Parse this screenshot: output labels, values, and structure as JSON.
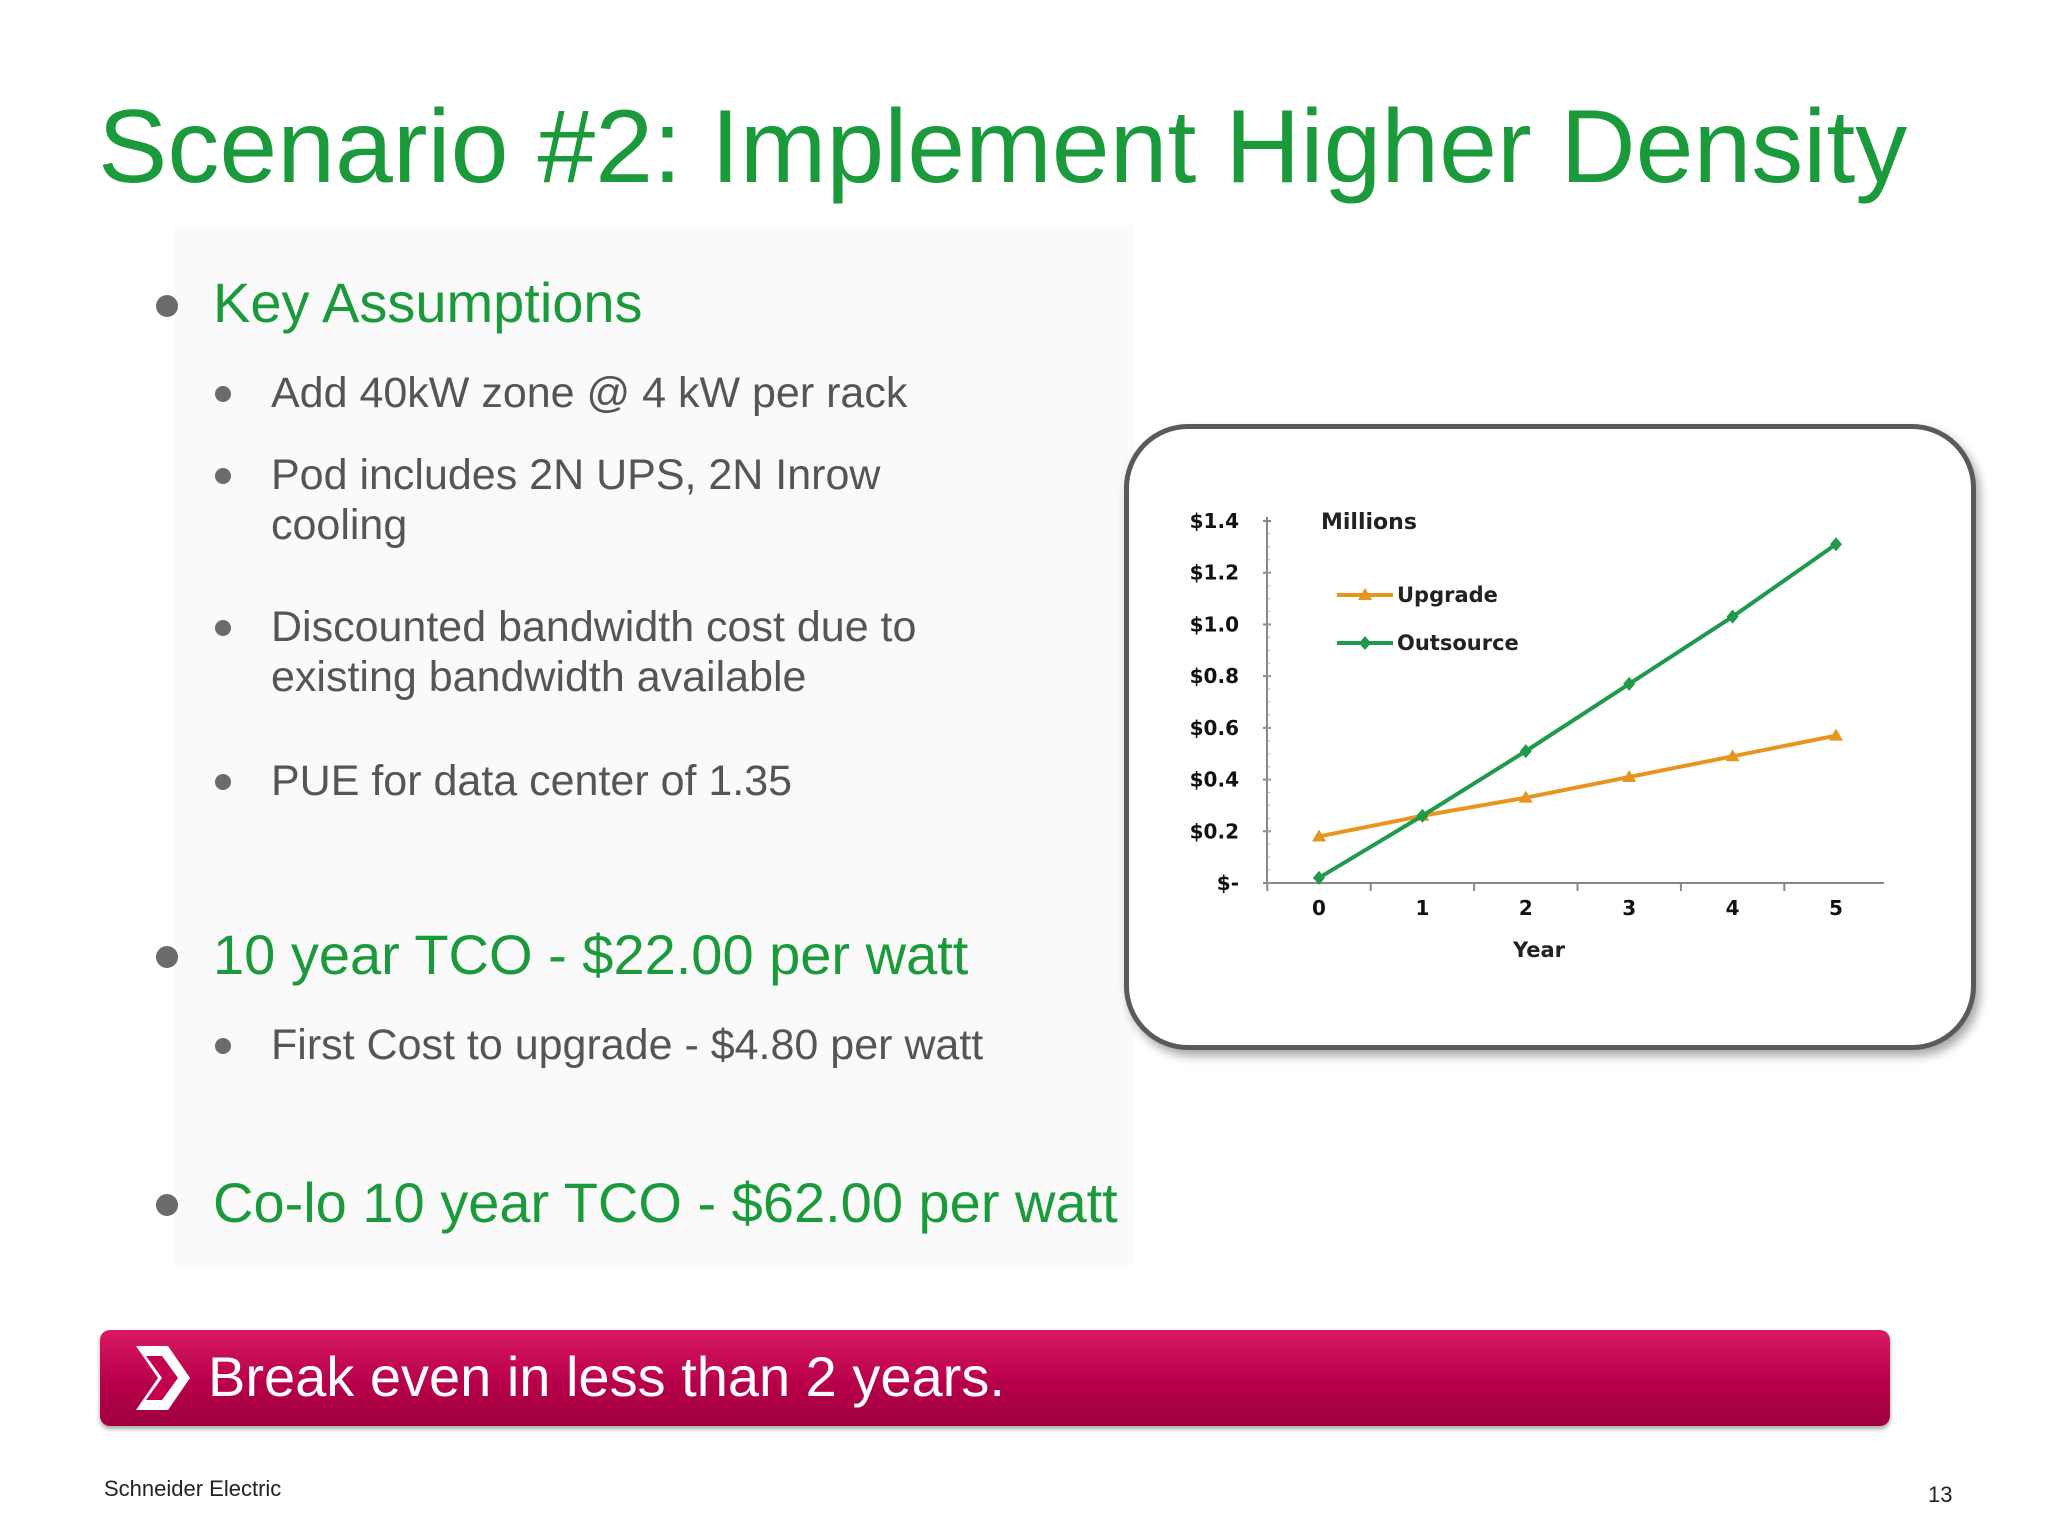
{
  "slide": {
    "title": "Scenario #2:  Implement Higher Density",
    "sections": [
      {
        "heading": "Key Assumptions",
        "items": [
          "Add 40kW zone @ 4 kW per rack",
          "Pod includes 2N UPS, 2N Inrow cooling",
          "Discounted bandwidth cost due to existing bandwidth available",
          "PUE for data center of 1.35"
        ]
      },
      {
        "heading": "10 year TCO - $22.00 per watt",
        "items": [
          "First Cost to upgrade - $4.80 per watt"
        ]
      },
      {
        "heading": "Co-lo 10 year TCO - $62.00 per watt",
        "items": []
      }
    ],
    "banner_text": "Break even in less than 2 years.",
    "footer_company": "Schneider Electric",
    "page_number": "13"
  },
  "chart_data": {
    "type": "line",
    "annotation": "Millions",
    "xlabel": "Year",
    "ylabel": "",
    "x": [
      0,
      1,
      2,
      3,
      4,
      5
    ],
    "x_tick_labels": [
      "0",
      "1",
      "2",
      "3",
      "4",
      "5"
    ],
    "y_tick_labels": [
      "$-",
      "$0.2",
      "$0.4",
      "$0.6",
      "$0.8",
      "$1.0",
      "$1.2",
      "$1.4"
    ],
    "ylim": [
      0,
      1.4
    ],
    "grid": false,
    "legend_placement": "top-left",
    "series": [
      {
        "name": "Upgrade",
        "color": "#e8951f",
        "marker": "triangle",
        "values": [
          0.18,
          0.26,
          0.33,
          0.41,
          0.49,
          0.57
        ]
      },
      {
        "name": "Outsource",
        "color": "#1f9a4a",
        "marker": "diamond",
        "values": [
          0.02,
          0.26,
          0.51,
          0.77,
          1.03,
          1.31
        ]
      }
    ]
  }
}
